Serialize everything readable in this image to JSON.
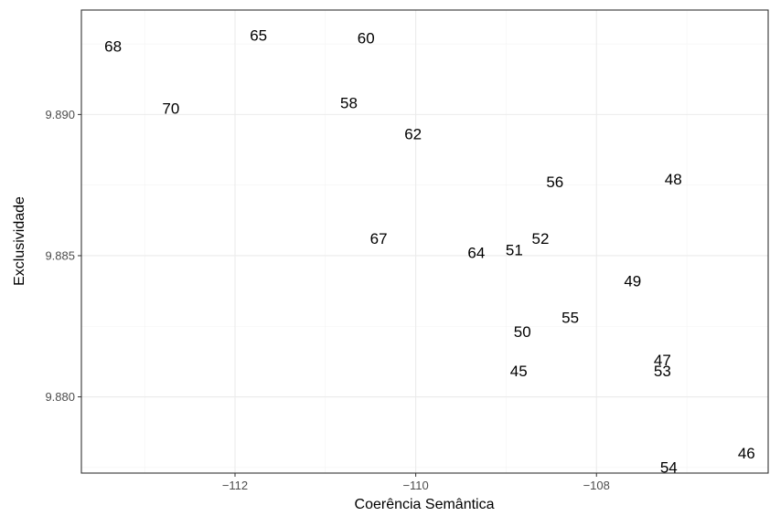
{
  "chart_data": {
    "type": "scatter",
    "marker": "text-label",
    "xlabel": "Coerência Semântica",
    "ylabel": "Exclusividade",
    "xlim": [
      -113.7,
      -106.1
    ],
    "ylim": [
      9.8773,
      9.8937
    ],
    "x_ticks": [
      -112,
      -110,
      -108
    ],
    "x_tick_labels": [
      "−112",
      "−110",
      "−108"
    ],
    "y_ticks": [
      9.88,
      9.885,
      9.89
    ],
    "y_tick_labels": [
      "9.880",
      "9.885",
      "9.890"
    ],
    "grid": true,
    "legend": "none",
    "points": [
      {
        "label": "68",
        "x": -113.35,
        "y": 9.8924
      },
      {
        "label": "65",
        "x": -111.74,
        "y": 9.8928
      },
      {
        "label": "60",
        "x": -110.55,
        "y": 9.8927
      },
      {
        "label": "70",
        "x": -112.71,
        "y": 9.8902
      },
      {
        "label": "58",
        "x": -110.74,
        "y": 9.8904
      },
      {
        "label": "62",
        "x": -110.03,
        "y": 9.8893
      },
      {
        "label": "56",
        "x": -108.46,
        "y": 9.8876
      },
      {
        "label": "48",
        "x": -107.15,
        "y": 9.8877
      },
      {
        "label": "67",
        "x": -110.41,
        "y": 9.8856
      },
      {
        "label": "52",
        "x": -108.62,
        "y": 9.8856
      },
      {
        "label": "51",
        "x": -108.91,
        "y": 9.8852
      },
      {
        "label": "64",
        "x": -109.33,
        "y": 9.8851
      },
      {
        "label": "49",
        "x": -107.6,
        "y": 9.8841
      },
      {
        "label": "55",
        "x": -108.29,
        "y": 9.8828
      },
      {
        "label": "50",
        "x": -108.82,
        "y": 9.8823
      },
      {
        "label": "47",
        "x": -107.27,
        "y": 9.8813
      },
      {
        "label": "53",
        "x": -107.27,
        "y": 9.8809
      },
      {
        "label": "45",
        "x": -108.86,
        "y": 9.8809
      },
      {
        "label": "46",
        "x": -106.34,
        "y": 9.878
      },
      {
        "label": "54",
        "x": -107.2,
        "y": 9.8775
      }
    ]
  }
}
